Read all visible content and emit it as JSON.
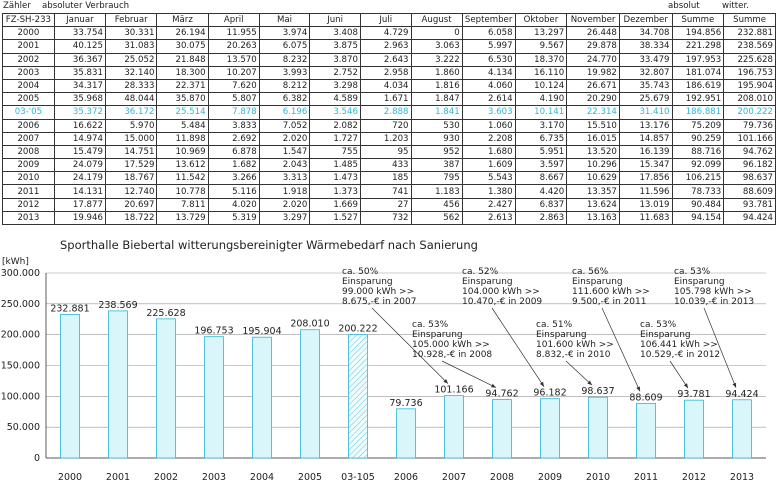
{
  "table": {
    "top_labels": {
      "zaehler": "Zähler",
      "absolut_verbrauch": "absoluter Verbrauch",
      "absolut": "absolut",
      "witter": "witter."
    },
    "headers": [
      "FZ-SH-233",
      "Januar",
      "Februar",
      "März",
      "April",
      "Mai",
      "Juni",
      "Juli",
      "August",
      "September",
      "Oktober",
      "November",
      "Dezember",
      "Summe",
      "Summe"
    ],
    "rows": [
      [
        "2000",
        "33.754",
        "30.331",
        "26.194",
        "11.955",
        "3.974",
        "3.408",
        "4.729",
        "0",
        "6.058",
        "13.297",
        "26.448",
        "34.708",
        "194.856",
        "232.881"
      ],
      [
        "2001",
        "40.125",
        "31.083",
        "30.075",
        "20.263",
        "6.075",
        "3.875",
        "2.963",
        "3.063",
        "5.997",
        "9.567",
        "29.878",
        "38.334",
        "221.298",
        "238.569"
      ],
      [
        "2002",
        "36.367",
        "25.052",
        "21.848",
        "13.570",
        "8.232",
        "3.870",
        "2.643",
        "3.222",
        "6.530",
        "18.370",
        "24.770",
        "33.479",
        "197.953",
        "225.628"
      ],
      [
        "2003",
        "35.831",
        "32.140",
        "18.300",
        "10.207",
        "3.993",
        "2.752",
        "2.958",
        "1.860",
        "4.134",
        "16.110",
        "19.982",
        "32.807",
        "181.074",
        "196.753"
      ],
      [
        "2004",
        "34.317",
        "28.333",
        "22.371",
        "7.620",
        "8.212",
        "3.298",
        "4.034",
        "1.816",
        "4.060",
        "10.124",
        "26.671",
        "35.743",
        "186.619",
        "195.904"
      ],
      [
        "2005",
        "35.968",
        "48.044",
        "35.870",
        "5.807",
        "6.382",
        "4.589",
        "1.671",
        "1.847",
        "2.614",
        "4.190",
        "20.290",
        "25.679",
        "192.951",
        "208.010"
      ],
      [
        "03-'05",
        "35.372",
        "36.172",
        "25.514",
        "7.878",
        "6.196",
        "3.546",
        "2.888",
        "1.841",
        "3.603",
        "10.141",
        "22.314",
        "31.410",
        "186.881",
        "200.222"
      ],
      [
        "2006",
        "16.622",
        "5.970",
        "5.484",
        "3.833",
        "7.052",
        "2.082",
        "720",
        "530",
        "1.060",
        "3.170",
        "15.510",
        "13.176",
        "75.209",
        "79.736"
      ],
      [
        "2007",
        "14.974",
        "15.000",
        "11.898",
        "2.692",
        "2.020",
        "1.727",
        "1.203",
        "930",
        "2.208",
        "6.735",
        "16.015",
        "14.857",
        "90.259",
        "101.166"
      ],
      [
        "2008",
        "15.479",
        "14.751",
        "10.969",
        "6.878",
        "1.547",
        "755",
        "95",
        "952",
        "1.680",
        "5.951",
        "13.520",
        "16.139",
        "88.716",
        "94.762"
      ],
      [
        "2009",
        "24.079",
        "17.529",
        "13.612",
        "1.682",
        "2.043",
        "1.485",
        "433",
        "387",
        "1.609",
        "3.597",
        "10.296",
        "15.347",
        "92.099",
        "96.182"
      ],
      [
        "2010",
        "24.179",
        "18.767",
        "11.542",
        "3.266",
        "3.313",
        "1.473",
        "185",
        "795",
        "5.543",
        "8.667",
        "10.629",
        "17.856",
        "106.215",
        "98.637"
      ],
      [
        "2011",
        "14.131",
        "12.740",
        "10.778",
        "5.116",
        "1.918",
        "1.373",
        "741",
        "1.183",
        "1.380",
        "4.420",
        "13.357",
        "11.596",
        "78.733",
        "88.609"
      ],
      [
        "2012",
        "17.877",
        "20.697",
        "7.811",
        "4.020",
        "2.020",
        "1.669",
        "27",
        "456",
        "2.427",
        "6.837",
        "13.624",
        "13.019",
        "90.484",
        "93.781"
      ],
      [
        "2013",
        "19.946",
        "18.722",
        "13.729",
        "5.319",
        "3.297",
        "1.527",
        "732",
        "562",
        "2.613",
        "2.863",
        "13.163",
        "11.683",
        "94.154",
        "94.424"
      ]
    ],
    "highlight_row": 6
  },
  "chart_data": {
    "type": "bar",
    "title": "Sporthalle Biebertal witterungsbereinigter Wärmebedarf nach Sanierung",
    "ylabel": "[kWh]",
    "ylim": [
      0,
      300000
    ],
    "yticks": [
      "0",
      "50.000",
      "100.000",
      "150.000",
      "200.000",
      "250.000",
      "300.000"
    ],
    "categories": [
      "2000",
      "2001",
      "2002",
      "2003",
      "2004",
      "2005",
      "03-105",
      "2006",
      "2007",
      "2008",
      "2009",
      "2010",
      "2011",
      "2012",
      "2013"
    ],
    "values": [
      232881,
      238569,
      225628,
      196753,
      195904,
      208010,
      200222,
      79736,
      101166,
      94762,
      96182,
      98637,
      88609,
      93781,
      94424
    ],
    "value_labels": [
      "232.881",
      "238.569",
      "225.628",
      "196.753",
      "195.904",
      "208.010",
      "200.222",
      "79.736",
      "101.166",
      "94.762",
      "96.182",
      "98.637",
      "88.609",
      "93.781",
      "94.424"
    ],
    "hatched_index": 6,
    "grid": true,
    "bar_color": "#d9f6fa",
    "bar_edge": "#2fb6d8",
    "annotations": [
      {
        "target": 8,
        "lines": [
          "ca. 50%",
          "Einsparung",
          "99.000 kWh >>",
          "8.675,-€ in 2007"
        ]
      },
      {
        "target": 9,
        "lines": [
          "ca. 53%",
          "Einsparung",
          "105.000 kWh >>",
          "10.928,-€ in 2008"
        ]
      },
      {
        "target": 10,
        "lines": [
          "ca. 52%",
          "Einsparung",
          "104.000 kWh >>",
          "10.470,-€ in 2009"
        ]
      },
      {
        "target": 11,
        "lines": [
          "ca. 51%",
          "Einsparung",
          "101.600 kWh >>",
          "8.832,-€ in 2010"
        ]
      },
      {
        "target": 12,
        "lines": [
          "ca. 56%",
          "Einsparung",
          "111.600 kWh >>",
          "9.500,-€ in 2011"
        ]
      },
      {
        "target": 13,
        "lines": [
          "ca. 53%",
          "Einsparung",
          "106.441 kWh >>",
          "10.529,-€ in 2012"
        ]
      },
      {
        "target": 14,
        "lines": [
          "ca. 53%",
          "Einsparung",
          "105.798 kWh >>",
          "10.039,-€ in 2013"
        ]
      }
    ]
  }
}
